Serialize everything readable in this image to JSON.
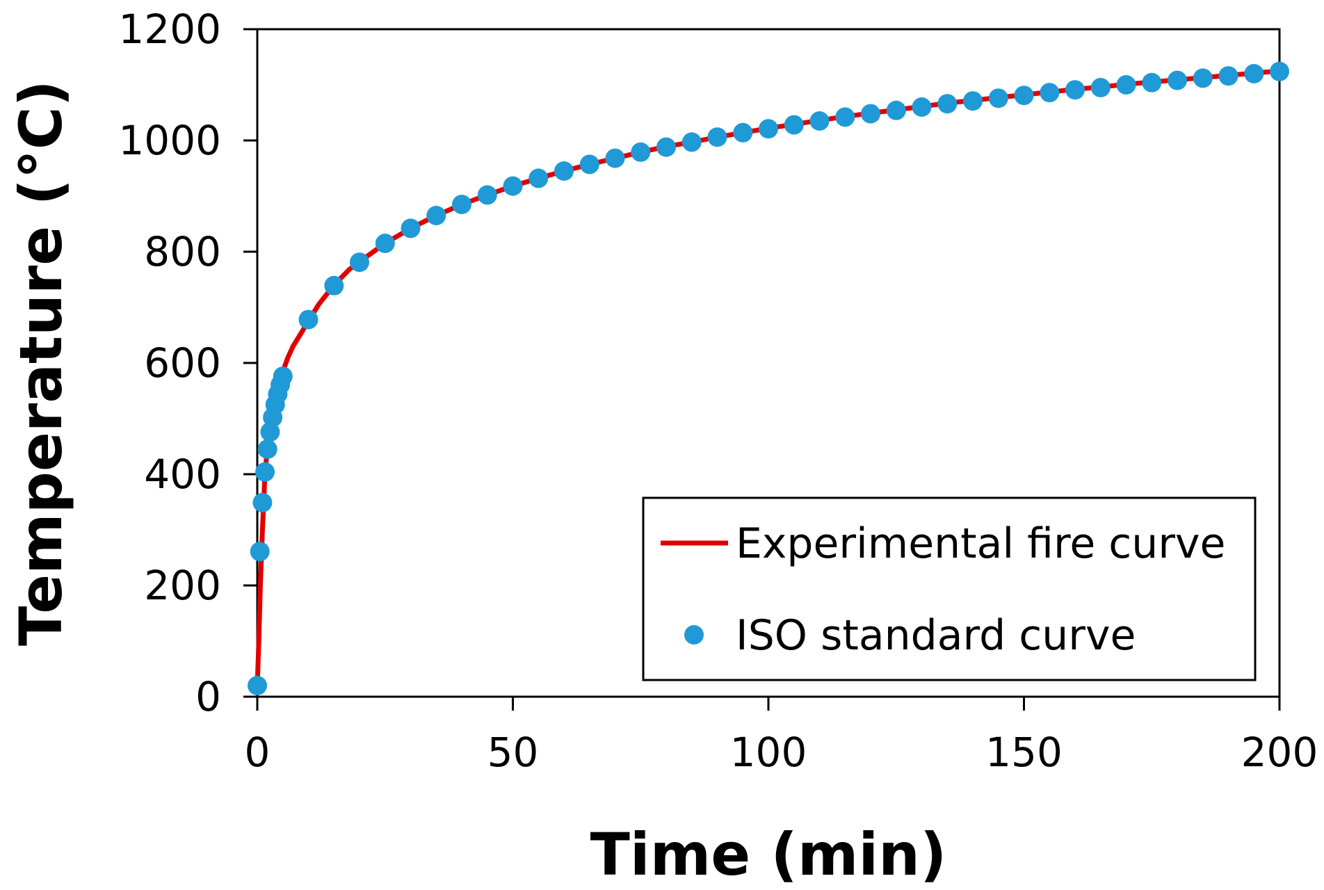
{
  "chart_data": {
    "type": "line",
    "title": "",
    "xlabel": "Time (min)",
    "ylabel": "Temperature (°C)",
    "xlim": [
      0,
      200
    ],
    "ylim": [
      0,
      1200
    ],
    "xticks": [
      0,
      50,
      100,
      150,
      200
    ],
    "yticks": [
      0,
      200,
      400,
      600,
      800,
      1000,
      1200
    ],
    "grid": false,
    "legend_position": "bottom-right",
    "colors": {
      "experimental": "#e00000",
      "iso": "#1f9ad6"
    },
    "series": [
      {
        "name": "Experimental fire curve",
        "style": "line",
        "x": [
          0,
          0.3,
          0.6,
          1,
          1.5,
          2,
          2.5,
          3,
          3.5,
          4,
          4.5,
          5,
          6,
          7,
          8,
          10,
          12,
          15,
          18,
          20,
          25,
          30,
          35,
          40,
          45,
          50,
          55,
          60,
          65,
          70,
          75,
          80,
          85,
          90,
          95,
          100,
          105,
          110,
          115,
          120,
          125,
          130,
          135,
          140,
          145,
          150,
          155,
          160,
          165,
          170,
          175,
          180,
          185,
          190,
          195,
          200
        ],
        "y": [
          20,
          100,
          200,
          300,
          400,
          450,
          490,
          520,
          540,
          560,
          575,
          585,
          610,
          630,
          645,
          675,
          705,
          740,
          768,
          782,
          815,
          842,
          865,
          885,
          902,
          918,
          932,
          945,
          957,
          968,
          979,
          989,
          997,
          1006,
          1014,
          1022,
          1029,
          1036,
          1043,
          1049,
          1055,
          1061,
          1067,
          1072,
          1077,
          1082,
          1087,
          1092,
          1096,
          1101,
          1105,
          1109,
          1113,
          1117,
          1121,
          1125
        ]
      },
      {
        "name": "ISO standard curve",
        "style": "scatter",
        "x": [
          0,
          0.5,
          1,
          1.5,
          2,
          2.5,
          3,
          3.5,
          4,
          4.5,
          5,
          10,
          15,
          20,
          25,
          30,
          35,
          40,
          45,
          50,
          55,
          60,
          65,
          70,
          75,
          80,
          85,
          90,
          95,
          100,
          105,
          110,
          115,
          120,
          125,
          130,
          135,
          140,
          145,
          150,
          155,
          160,
          165,
          170,
          175,
          180,
          185,
          190,
          195,
          200
        ],
        "y": [
          20,
          261,
          349,
          404,
          445,
          476,
          502,
          525,
          544,
          561,
          576,
          678,
          739,
          781,
          815,
          842,
          865,
          885,
          902,
          918,
          932,
          945,
          957,
          968,
          979,
          988,
          997,
          1006,
          1014,
          1021,
          1028,
          1035,
          1042,
          1048,
          1054,
          1060,
          1066,
          1071,
          1076,
          1081,
          1086,
          1091,
          1095,
          1100,
          1104,
          1108,
          1112,
          1116,
          1120,
          1124
        ]
      }
    ]
  }
}
